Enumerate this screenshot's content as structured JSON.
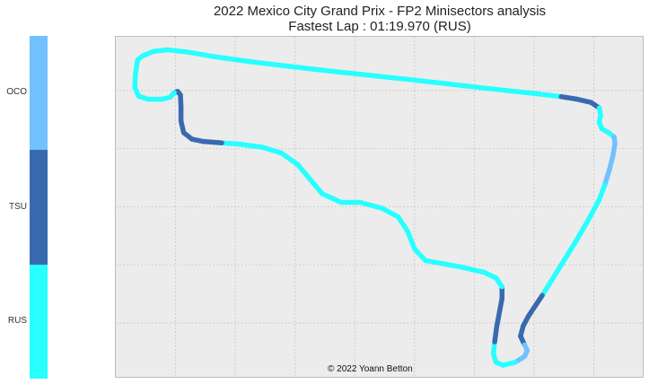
{
  "chart_data": {
    "type": "track-map",
    "title": "2022 Mexico City Grand Prix - FP2 Minisectors analysis",
    "subtitle": "Fastest Lap : 01:19.970 (RUS)",
    "credit": "© 2022 Yoann Betton",
    "legend": {
      "placement": "left colorbar",
      "entries": [
        {
          "name": "OCO",
          "color": "#72c1ff"
        },
        {
          "name": "TSU",
          "color": "#396ab0"
        },
        {
          "name": "RUS",
          "color": "#28ffff"
        }
      ]
    },
    "grid": true,
    "track": [
      [
        -260,
        1150
      ],
      [
        -240,
        1165
      ],
      [
        -200,
        1180
      ],
      [
        -150,
        1185
      ],
      [
        -80,
        1178
      ],
      [
        20,
        1162
      ],
      [
        150,
        1145
      ],
      [
        300,
        1128
      ],
      [
        450,
        1112
      ],
      [
        600,
        1097
      ],
      [
        750,
        1082
      ],
      [
        900,
        1066
      ],
      [
        1050,
        1050
      ],
      [
        1200,
        1035
      ],
      [
        1300,
        1024
      ],
      [
        1360,
        1015
      ],
      [
        1410,
        1004
      ],
      [
        1440,
        985
      ],
      [
        1445,
        960
      ],
      [
        1440,
        935
      ],
      [
        1450,
        913
      ],
      [
        1475,
        900
      ],
      [
        1495,
        885
      ],
      [
        1498,
        862
      ],
      [
        1490,
        820
      ],
      [
        1478,
        775
      ],
      [
        1460,
        720
      ],
      [
        1440,
        670
      ],
      [
        1400,
        600
      ],
      [
        1350,
        520
      ],
      [
        1290,
        430
      ],
      [
        1230,
        340
      ],
      [
        1180,
        270
      ],
      [
        1160,
        235
      ],
      [
        1150,
        200
      ],
      [
        1165,
        170
      ],
      [
        1175,
        150
      ],
      [
        1165,
        130
      ],
      [
        1130,
        110
      ],
      [
        1085,
        100
      ],
      [
        1060,
        110
      ],
      [
        1050,
        140
      ],
      [
        1055,
        180
      ],
      [
        1062,
        230
      ],
      [
        1072,
        280
      ],
      [
        1082,
        330
      ],
      [
        1082,
        370
      ],
      [
        1060,
        400
      ],
      [
        1015,
        420
      ],
      [
        930,
        438
      ],
      [
        860,
        450
      ],
      [
        800,
        460
      ],
      [
        760,
        500
      ],
      [
        735,
        560
      ],
      [
        700,
        610
      ],
      [
        640,
        640
      ],
      [
        560,
        660
      ],
      [
        490,
        660
      ],
      [
        420,
        690
      ],
      [
        375,
        740
      ],
      [
        330,
        790
      ],
      [
        270,
        830
      ],
      [
        200,
        850
      ],
      [
        120,
        860
      ],
      [
        50,
        865
      ],
      [
        -20,
        870
      ],
      [
        -60,
        878
      ],
      [
        -90,
        900
      ],
      [
        -100,
        940
      ],
      [
        -100,
        990
      ],
      [
        -102,
        1030
      ],
      [
        -112,
        1042
      ],
      [
        -125,
        1038
      ],
      [
        -140,
        1022
      ],
      [
        -170,
        1015
      ],
      [
        -220,
        1015
      ],
      [
        -255,
        1025
      ],
      [
        -270,
        1055
      ],
      [
        -268,
        1100
      ],
      [
        -260,
        1150
      ]
    ],
    "minisector_driver": [
      "RUS",
      "RUS",
      "RUS",
      "RUS",
      "RUS",
      "RUS",
      "RUS",
      "RUS",
      "RUS",
      "RUS",
      "RUS",
      "RUS",
      "RUS",
      "RUS",
      "TSU",
      "TSU",
      "TSU",
      "RUS",
      "RUS",
      "RUS",
      "RUS",
      "RUS",
      "OCO",
      "OCO",
      "OCO",
      "OCO",
      "RUS",
      "RUS",
      "RUS",
      "RUS",
      "RUS",
      "TSU",
      "TSU",
      "TSU",
      "TSU",
      "OCO",
      "OCO",
      "OCO",
      "RUS",
      "RUS",
      "RUS",
      "RUS",
      "TSU",
      "TSU",
      "TSU",
      "TSU",
      "RUS",
      "RUS",
      "RUS",
      "RUS",
      "RUS",
      "RUS",
      "RUS",
      "RUS",
      "RUS",
      "RUS",
      "RUS",
      "RUS",
      "RUS",
      "RUS",
      "RUS",
      "RUS",
      "RUS",
      "RUS",
      "TSU",
      "TSU",
      "TSU",
      "TSU",
      "TSU",
      "TSU",
      "TSU",
      "TSU",
      "RUS",
      "RUS",
      "RUS",
      "RUS",
      "RUS",
      "RUS",
      "RUS"
    ]
  }
}
